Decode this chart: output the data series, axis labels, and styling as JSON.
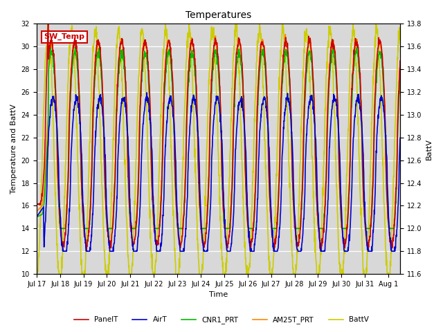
{
  "title": "Temperatures",
  "ylabel_left": "Temperature and BattV",
  "ylabel_right": "BattV",
  "xlabel": "Time",
  "ylim_left": [
    10,
    32
  ],
  "ylim_right": [
    11.6,
    13.8
  ],
  "num_days": 15.5,
  "xtick_labels": [
    "Jul 17",
    "Jul 18",
    "Jul 19",
    "Jul 20",
    "Jul 21",
    "Jul 22",
    "Jul 23",
    "Jul 24",
    "Jul 25",
    "Jul 26",
    "Jul 27",
    "Jul 28",
    "Jul 29",
    "Jul 30",
    "Jul 31",
    "Aug 1"
  ],
  "legend_labels": [
    "PanelT",
    "AirT",
    "CNR1_PRT",
    "AM25T_PRT",
    "BattV"
  ],
  "legend_colors": [
    "#cc0000",
    "#0000cc",
    "#00bb00",
    "#ff8800",
    "#cccc00"
  ],
  "sw_temp_text": "SW_Temp",
  "sw_temp_box_color": "#cc0000",
  "background_color": "#ffffff",
  "plot_bg_color": "#d8d8d8",
  "grid_color": "#ffffff",
  "line_width": 1.2,
  "title_fontsize": 10,
  "label_fontsize": 8,
  "tick_fontsize": 7
}
